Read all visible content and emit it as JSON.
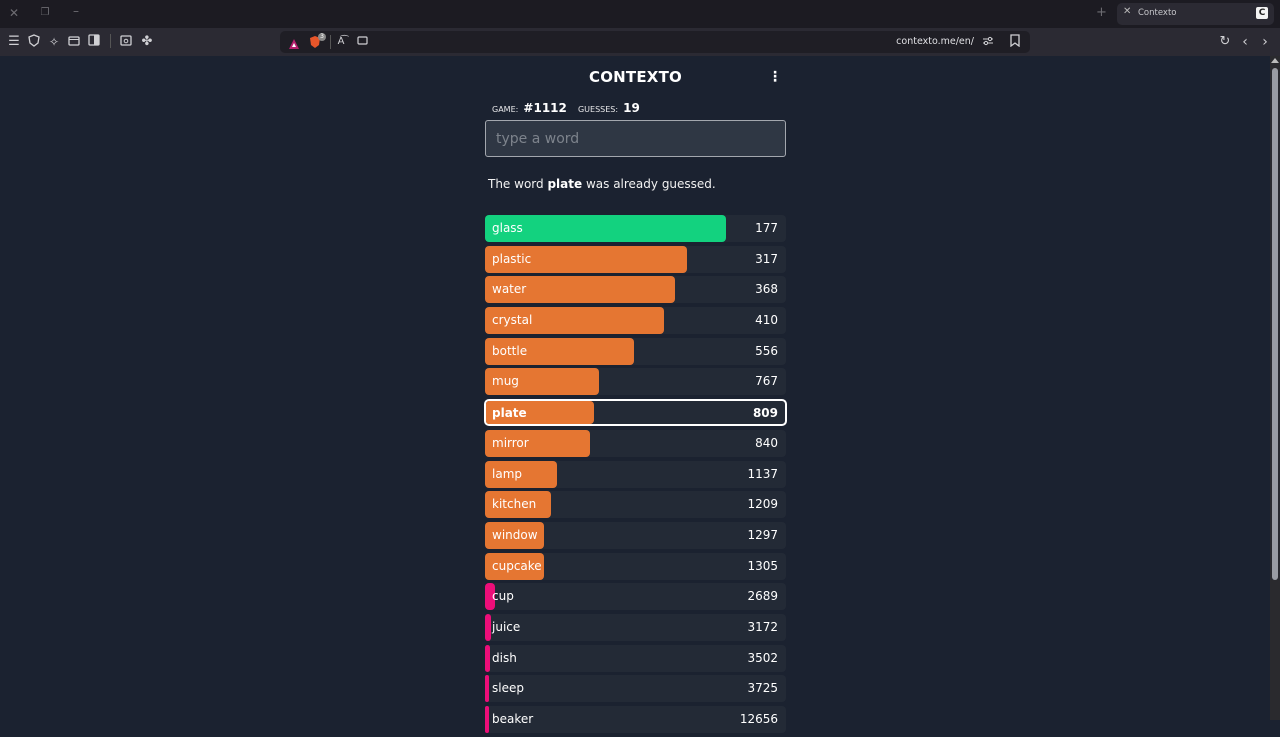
{
  "browser": {
    "tab_title": "Contexto",
    "tab_favicon": "C",
    "url": "contexto.me/en/",
    "brave_badge_count": "3",
    "icons": [
      "close-icon",
      "restore-icon",
      "minimize-icon",
      "menu-icon",
      "shield-icon",
      "pin-icon",
      "tabs-icon",
      "sidebar-icon",
      "screenshot-icon",
      "extensions-icon",
      "brave-rewards-icon",
      "brave-shields-icon",
      "translate-icon",
      "cast-icon",
      "site-settings-icon",
      "bookmark-icon",
      "reload-icon",
      "back-icon",
      "forward-icon",
      "new-tab-icon"
    ]
  },
  "app": {
    "title": "CONTEXTO",
    "game_label": "Game:",
    "game_number": "#1112",
    "guesses_label": "Guesses:",
    "guesses_count": "19",
    "input_placeholder": "type a word",
    "input_value": "",
    "message_prefix": "The word ",
    "message_word": "plate",
    "message_suffix": " was already guessed."
  },
  "colors": {
    "green": "#13d27f",
    "orange": "#e57632",
    "pink": "#ed0e79",
    "background": "#1b2230",
    "row_bg": "#232a36"
  },
  "guesses": [
    {
      "word": "glass",
      "distance": "177",
      "color": "green",
      "fill": 0.8,
      "current": false
    },
    {
      "word": "plastic",
      "distance": "317",
      "color": "orange",
      "fill": 0.67,
      "current": false
    },
    {
      "word": "water",
      "distance": "368",
      "color": "orange",
      "fill": 0.63,
      "current": false
    },
    {
      "word": "crystal",
      "distance": "410",
      "color": "orange",
      "fill": 0.595,
      "current": false
    },
    {
      "word": "bottle",
      "distance": "556",
      "color": "orange",
      "fill": 0.495,
      "current": false
    },
    {
      "word": "mug",
      "distance": "767",
      "color": "orange",
      "fill": 0.38,
      "current": false
    },
    {
      "word": "plate",
      "distance": "809",
      "color": "orange",
      "fill": 0.36,
      "current": true
    },
    {
      "word": "mirror",
      "distance": "840",
      "color": "orange",
      "fill": 0.35,
      "current": false
    },
    {
      "word": "lamp",
      "distance": "1137",
      "color": "orange",
      "fill": 0.24,
      "current": false
    },
    {
      "word": "kitchen",
      "distance": "1209",
      "color": "orange",
      "fill": 0.22,
      "current": false
    },
    {
      "word": "window",
      "distance": "1297",
      "color": "orange",
      "fill": 0.197,
      "current": false
    },
    {
      "word": "cupcake",
      "distance": "1305",
      "color": "orange",
      "fill": 0.195,
      "current": false
    },
    {
      "word": "cup",
      "distance": "2689",
      "color": "pink",
      "fill": 0.033,
      "current": false
    },
    {
      "word": "juice",
      "distance": "3172",
      "color": "pink",
      "fill": 0.02,
      "current": false
    },
    {
      "word": "dish",
      "distance": "3502",
      "color": "pink",
      "fill": 0.015,
      "current": false
    },
    {
      "word": "sleep",
      "distance": "3725",
      "color": "pink",
      "fill": 0.013,
      "current": false
    },
    {
      "word": "beaker",
      "distance": "12656",
      "color": "pink",
      "fill": 0.01,
      "current": false
    }
  ]
}
